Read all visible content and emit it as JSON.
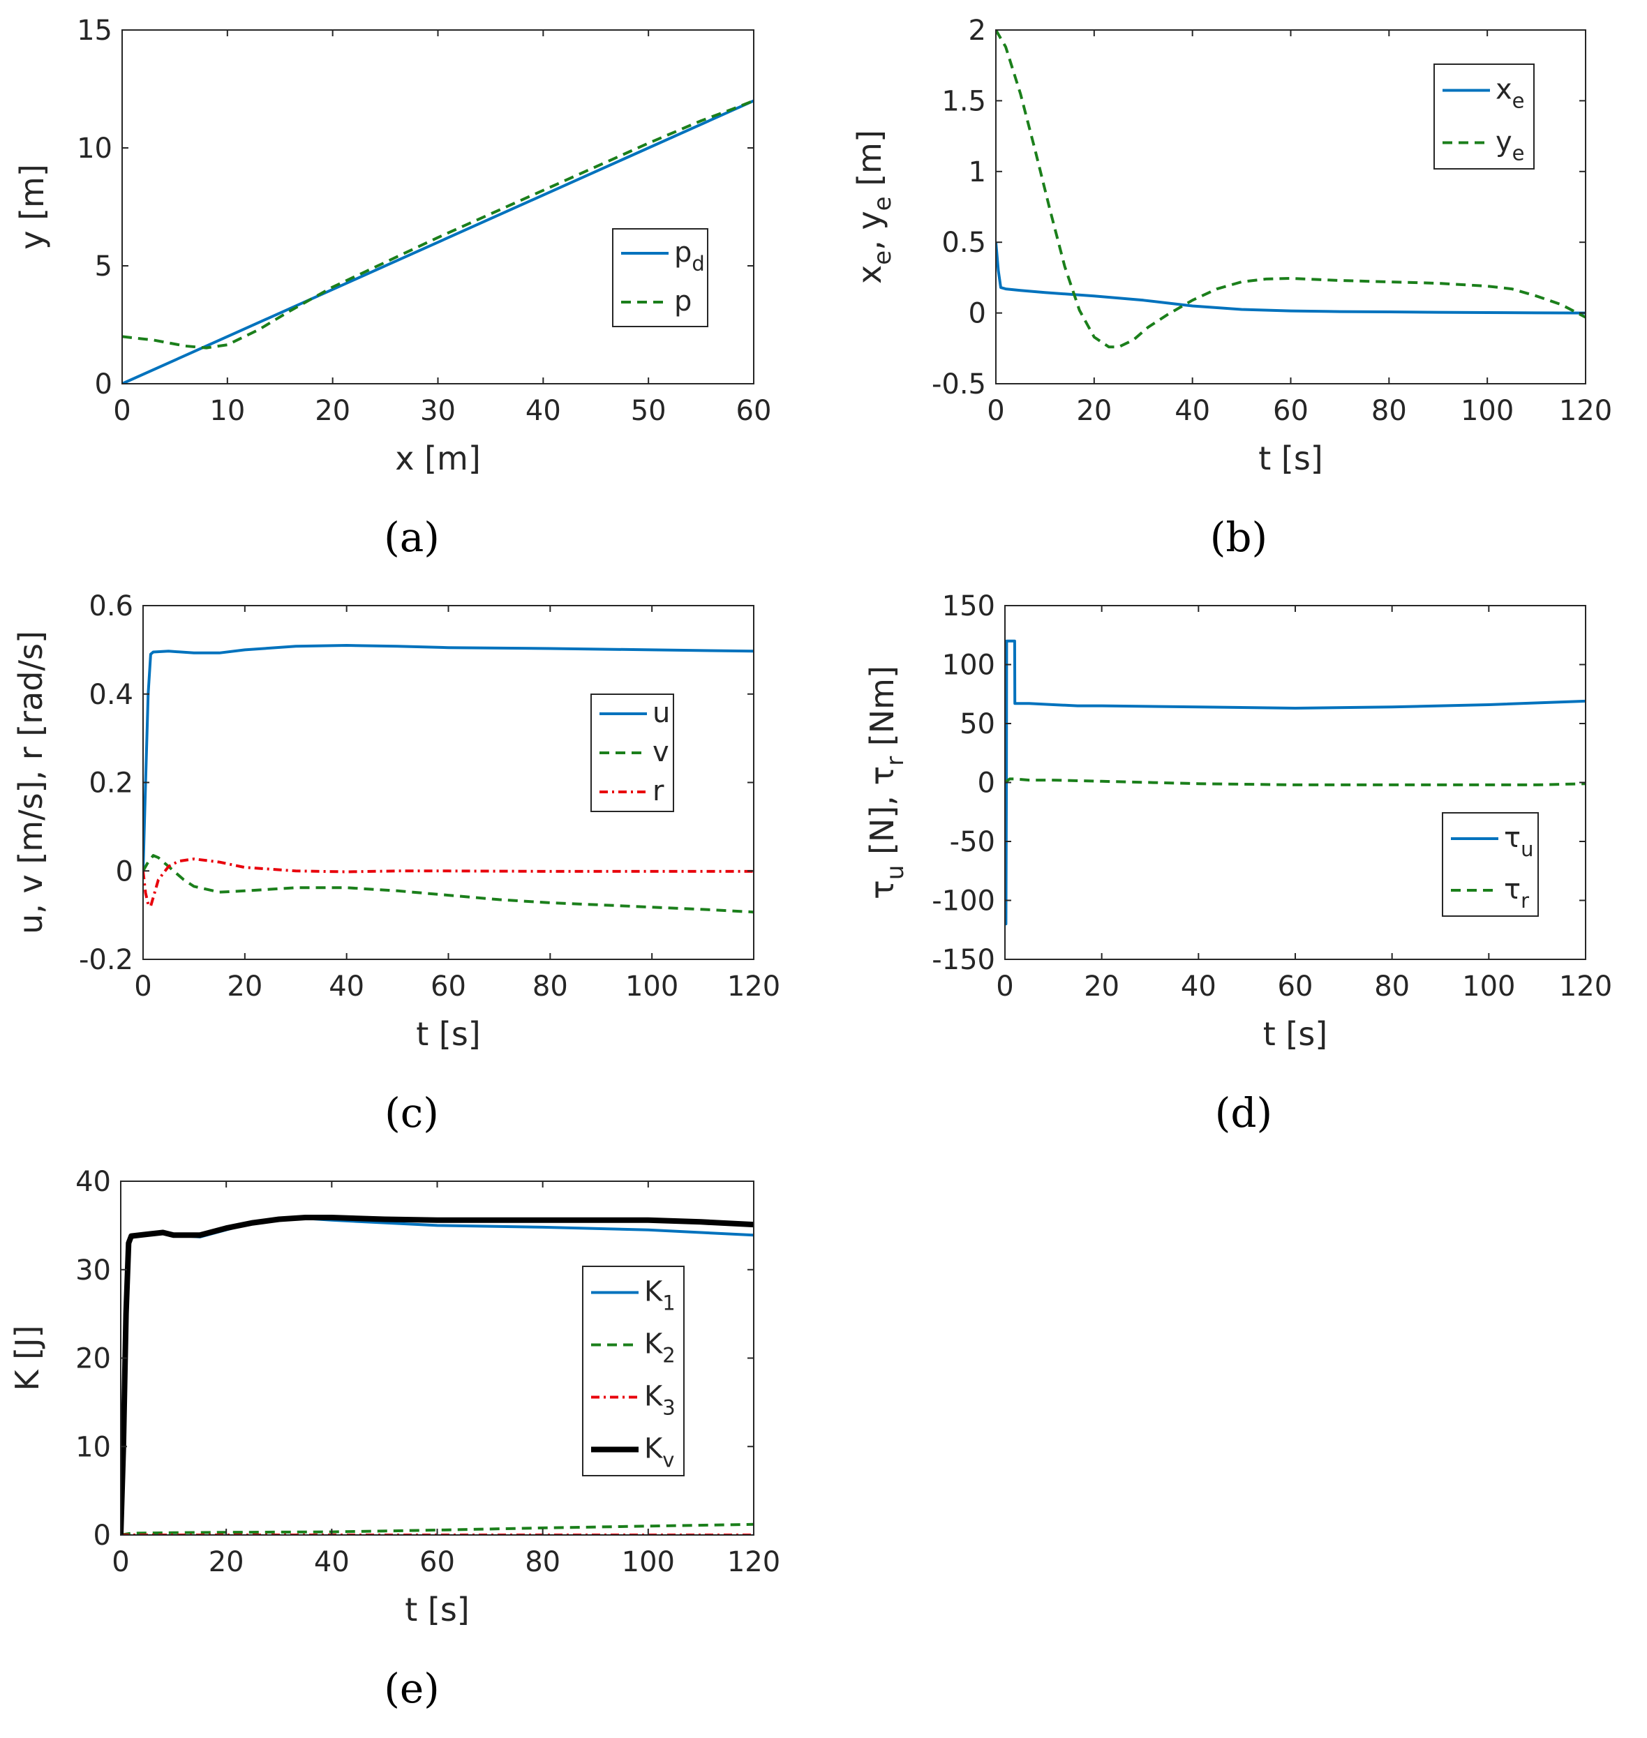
{
  "colors": {
    "blue": "#0072BD",
    "green": "#1B7F1B",
    "red": "#E8000B",
    "black": "#000000",
    "axis": "#262626"
  },
  "chart_data": [
    {
      "id": "a",
      "type": "line",
      "caption": "(a)",
      "xlabel": "x [m]",
      "ylabel": "y [m]",
      "xlim": [
        0,
        60
      ],
      "ylim": [
        0,
        15
      ],
      "xticks": [
        "0",
        "10",
        "20",
        "30",
        "40",
        "50",
        "60"
      ],
      "yticks": [
        "0",
        "5",
        "10",
        "15"
      ],
      "legend_position": "middle-right",
      "series": [
        {
          "name": "p",
          "sub": "d",
          "style": "solid",
          "color": "blue",
          "x": [
            0,
            60
          ],
          "y": [
            0,
            12
          ]
        },
        {
          "name": "p",
          "sub": "",
          "style": "dashed",
          "color": "green",
          "x": [
            0,
            3,
            6,
            8,
            10,
            13,
            16,
            20,
            25,
            30,
            35,
            40,
            45,
            50,
            55,
            58,
            60
          ],
          "y": [
            2.0,
            1.85,
            1.6,
            1.52,
            1.65,
            2.3,
            3.1,
            4.1,
            5.15,
            6.2,
            7.2,
            8.2,
            9.2,
            10.2,
            11.15,
            11.65,
            12.0
          ]
        }
      ]
    },
    {
      "id": "b",
      "type": "line",
      "caption": "(b)",
      "xlabel": "t [s]",
      "ylabel_parts": [
        "x",
        "e",
        ", y",
        "e",
        " [m]"
      ],
      "xlim": [
        0,
        120
      ],
      "ylim": [
        -0.5,
        2
      ],
      "xticks": [
        "0",
        "20",
        "40",
        "60",
        "80",
        "100",
        "120"
      ],
      "yticks": [
        "-0.5",
        "0",
        "0.5",
        "1",
        "1.5",
        "2"
      ],
      "legend_position": "top-right",
      "series": [
        {
          "name": "x",
          "sub": "e",
          "style": "solid",
          "color": "blue",
          "x": [
            0,
            0.5,
            1,
            2,
            5,
            10,
            20,
            30,
            40,
            50,
            60,
            70,
            80,
            90,
            100,
            110,
            120
          ],
          "y": [
            0.5,
            0.3,
            0.18,
            0.17,
            0.16,
            0.145,
            0.12,
            0.09,
            0.05,
            0.025,
            0.015,
            0.01,
            0.008,
            0.005,
            0.003,
            0.001,
            0.0
          ]
        },
        {
          "name": "y",
          "sub": "e",
          "style": "dashed",
          "color": "green",
          "x": [
            0,
            2,
            5,
            8,
            11,
            14,
            17,
            20,
            23,
            25,
            28,
            31,
            35,
            40,
            45,
            50,
            55,
            60,
            70,
            80,
            90,
            100,
            105,
            110,
            115,
            120
          ],
          "y": [
            2.0,
            1.88,
            1.55,
            1.15,
            0.73,
            0.33,
            0.02,
            -0.17,
            -0.24,
            -0.24,
            -0.19,
            -0.1,
            -0.01,
            0.09,
            0.17,
            0.22,
            0.24,
            0.245,
            0.23,
            0.22,
            0.21,
            0.19,
            0.17,
            0.12,
            0.06,
            -0.03
          ]
        }
      ]
    },
    {
      "id": "c",
      "type": "line",
      "caption": "(c)",
      "xlabel": "t [s]",
      "ylabel": "u, v [m/s], r [rad/s]",
      "xlim": [
        0,
        120
      ],
      "ylim": [
        -0.2,
        0.6
      ],
      "xticks": [
        "0",
        "20",
        "40",
        "60",
        "80",
        "100",
        "120"
      ],
      "yticks": [
        "-0.2",
        "0",
        "0.2",
        "0.4",
        "0.6"
      ],
      "legend_position": "middle-right",
      "series": [
        {
          "name": "u",
          "sub": "",
          "style": "solid",
          "color": "blue",
          "x": [
            0,
            0.5,
            1,
            1.5,
            2,
            5,
            10,
            15,
            20,
            30,
            40,
            50,
            60,
            80,
            100,
            120
          ],
          "y": [
            0,
            0.2,
            0.4,
            0.49,
            0.495,
            0.497,
            0.493,
            0.493,
            0.5,
            0.508,
            0.51,
            0.508,
            0.505,
            0.503,
            0.5,
            0.497
          ]
        },
        {
          "name": "v",
          "sub": "",
          "style": "dashed",
          "color": "green",
          "x": [
            0,
            1,
            2,
            3,
            5,
            8,
            10,
            15,
            20,
            30,
            40,
            50,
            60,
            70,
            80,
            90,
            100,
            110,
            120
          ],
          "y": [
            0,
            0.02,
            0.035,
            0.03,
            0.01,
            -0.02,
            -0.035,
            -0.048,
            -0.045,
            -0.038,
            -0.038,
            -0.045,
            -0.055,
            -0.065,
            -0.072,
            -0.077,
            -0.082,
            -0.087,
            -0.093
          ]
        },
        {
          "name": "r",
          "sub": "",
          "style": "dashdot",
          "color": "red",
          "x": [
            0,
            0.5,
            1,
            1.5,
            2,
            3,
            5,
            7,
            10,
            15,
            20,
            30,
            40,
            50,
            60,
            80,
            100,
            120
          ],
          "y": [
            0,
            -0.05,
            -0.075,
            -0.08,
            -0.06,
            -0.02,
            0.01,
            0.022,
            0.027,
            0.02,
            0.008,
            0.0,
            -0.002,
            0.0,
            0.0,
            -0.001,
            -0.001,
            -0.001
          ]
        }
      ]
    },
    {
      "id": "d",
      "type": "line",
      "caption": "(d)",
      "xlabel": "t [s]",
      "ylabel_parts": [
        "τ",
        "u",
        " [N], τ",
        "r",
        " [Nm]"
      ],
      "xlim": [
        0,
        120
      ],
      "ylim": [
        -150,
        150
      ],
      "xticks": [
        "0",
        "20",
        "40",
        "60",
        "80",
        "100",
        "120"
      ],
      "yticks": [
        "-150",
        "-100",
        "-50",
        "0",
        "50",
        "100",
        "150"
      ],
      "legend_position": "bottom-right",
      "series": [
        {
          "name": "τ",
          "sub": "u",
          "style": "solid",
          "color": "blue",
          "x": [
            0,
            0.2,
            0.3,
            0.35,
            2.0,
            2.05,
            5,
            10,
            15,
            20,
            40,
            60,
            80,
            100,
            120
          ],
          "y": [
            -120,
            -120,
            0,
            120,
            120,
            67,
            67,
            66,
            65,
            65,
            64,
            63,
            64,
            66,
            69
          ]
        },
        {
          "name": "τ",
          "sub": "r",
          "style": "dashed",
          "color": "green",
          "x": [
            0,
            1,
            2,
            5,
            10,
            20,
            40,
            60,
            80,
            100,
            110,
            120
          ],
          "y": [
            0,
            3,
            3,
            2,
            2,
            1,
            -1,
            -2,
            -2,
            -2,
            -2,
            -1
          ]
        }
      ]
    },
    {
      "id": "e",
      "type": "line",
      "caption": "(e)",
      "xlabel": "t [s]",
      "ylabel": "K [J]",
      "xlim": [
        0,
        120
      ],
      "ylim": [
        0,
        40
      ],
      "xticks": [
        "0",
        "20",
        "40",
        "60",
        "80",
        "100",
        "120"
      ],
      "yticks": [
        "0",
        "10",
        "20",
        "30",
        "40"
      ],
      "legend_position": "middle-right",
      "series": [
        {
          "name": "K",
          "sub": "1",
          "style": "solid",
          "color": "blue",
          "x": [
            0,
            0.5,
            1,
            1.5,
            2,
            5,
            8,
            10,
            15,
            20,
            25,
            30,
            35,
            40,
            50,
            60,
            80,
            100,
            120
          ],
          "y": [
            0,
            10,
            25,
            33,
            33.8,
            34.0,
            34.2,
            33.9,
            33.7,
            34.5,
            35.3,
            35.6,
            35.8,
            35.6,
            35.3,
            35.0,
            34.8,
            34.5,
            33.9
          ]
        },
        {
          "name": "K",
          "sub": "2",
          "style": "dashed",
          "color": "green",
          "x": [
            0,
            1,
            2,
            10,
            20,
            40,
            60,
            80,
            100,
            120
          ],
          "y": [
            0,
            0.1,
            0.2,
            0.25,
            0.3,
            0.35,
            0.55,
            0.8,
            1.0,
            1.2
          ]
        },
        {
          "name": "K",
          "sub": "3",
          "style": "dashdot",
          "color": "red",
          "x": [
            0,
            20,
            40,
            60,
            80,
            100,
            120
          ],
          "y": [
            0,
            0,
            0,
            0,
            0,
            0,
            0
          ]
        },
        {
          "name": "K",
          "sub": "v",
          "style": "thick",
          "color": "black",
          "x": [
            0,
            0.5,
            1,
            1.5,
            2,
            5,
            8,
            10,
            15,
            20,
            25,
            30,
            35,
            40,
            50,
            60,
            80,
            100,
            110,
            120
          ],
          "y": [
            0,
            10,
            25,
            33,
            33.8,
            34.0,
            34.2,
            33.9,
            33.9,
            34.7,
            35.3,
            35.7,
            35.9,
            35.9,
            35.7,
            35.6,
            35.6,
            35.6,
            35.4,
            35.1
          ]
        }
      ]
    }
  ]
}
